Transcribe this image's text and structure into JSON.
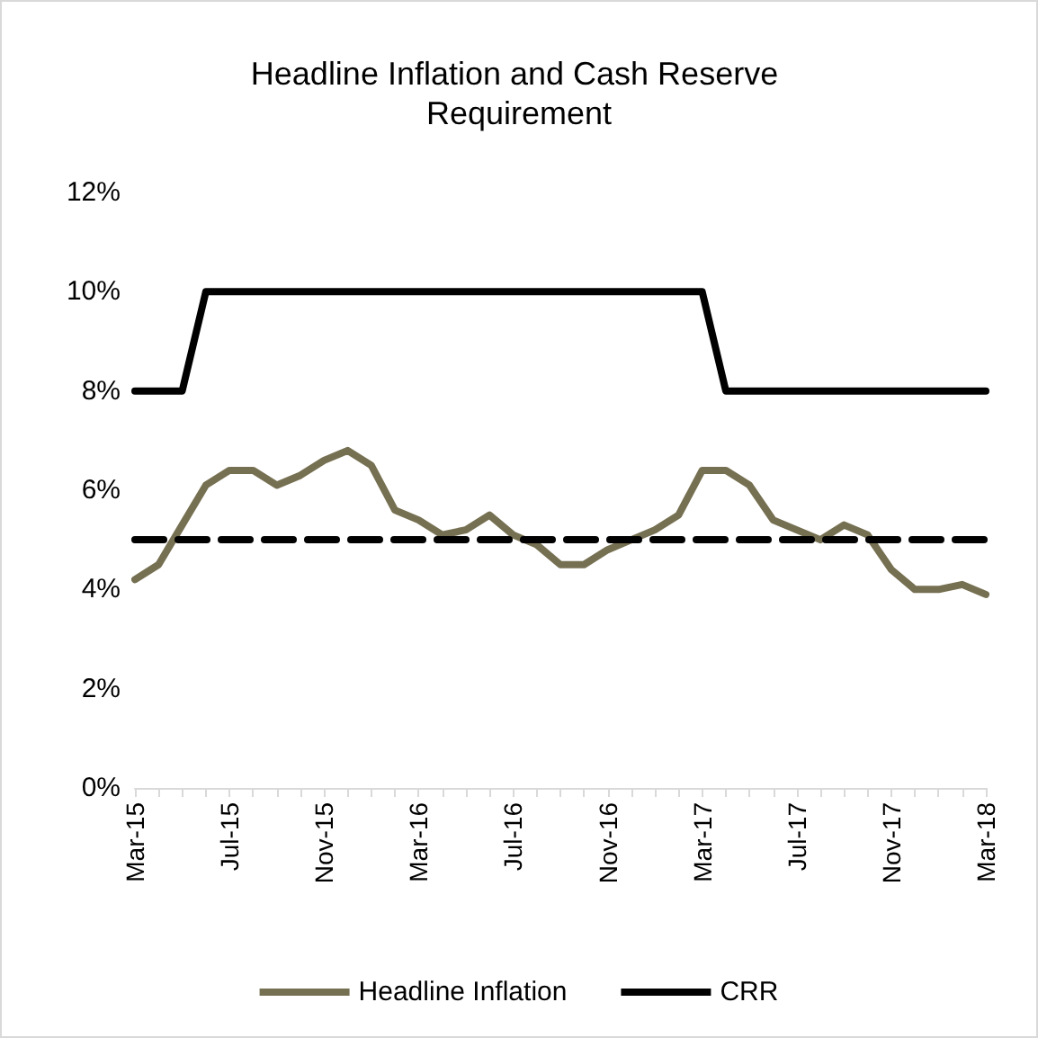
{
  "chart_data": {
    "type": "line",
    "title": "Headline Inflation and Cash Reserve Requirement",
    "categories": [
      "Mar-15",
      null,
      null,
      null,
      "Jul-15",
      null,
      null,
      null,
      "Nov-15",
      null,
      null,
      null,
      "Mar-16",
      null,
      null,
      null,
      "Jul-16",
      null,
      null,
      null,
      "Nov-16",
      null,
      null,
      null,
      "Mar-17",
      null,
      null,
      null,
      "Jul-17",
      null,
      null,
      null,
      "Nov-17",
      null,
      null,
      null,
      "Mar-18"
    ],
    "series": [
      {
        "name": "Headline Inflation",
        "color": "#767052",
        "values": [
          4.2,
          4.5,
          5.3,
          6.1,
          6.4,
          6.4,
          6.1,
          6.3,
          6.6,
          6.8,
          6.5,
          5.6,
          5.4,
          5.1,
          5.2,
          5.5,
          5.1,
          4.9,
          4.5,
          4.5,
          4.8,
          5.0,
          5.2,
          5.5,
          6.4,
          6.4,
          6.1,
          5.4,
          5.2,
          5.0,
          5.3,
          5.1,
          4.4,
          4.0,
          4.0,
          4.1,
          3.9
        ]
      },
      {
        "name": "CRR",
        "color": "#000000",
        "values": [
          8,
          8,
          8,
          10,
          10,
          10,
          10,
          10,
          10,
          10,
          10,
          10,
          10,
          10,
          10,
          10,
          10,
          10,
          10,
          10,
          10,
          10,
          10,
          10,
          10,
          8,
          8,
          8,
          8,
          8,
          8,
          8,
          8,
          8,
          8,
          8,
          8
        ]
      }
    ],
    "ylim": [
      0,
      12
    ],
    "yticks": [
      {
        "value": 0,
        "label": "0%"
      },
      {
        "value": 2,
        "label": "2%"
      },
      {
        "value": 4,
        "label": "4%"
      },
      {
        "value": 6,
        "label": "6%"
      },
      {
        "value": 8,
        "label": "8%"
      },
      {
        "value": 10,
        "label": "10%"
      },
      {
        "value": 12,
        "label": "12%"
      }
    ],
    "ref_lines": [
      {
        "axis": "y",
        "value": 5,
        "color": "#000000",
        "line_style": "dashed"
      }
    ],
    "grid": false,
    "legend": "bottom",
    "marker": "none",
    "line_style": "solid"
  }
}
